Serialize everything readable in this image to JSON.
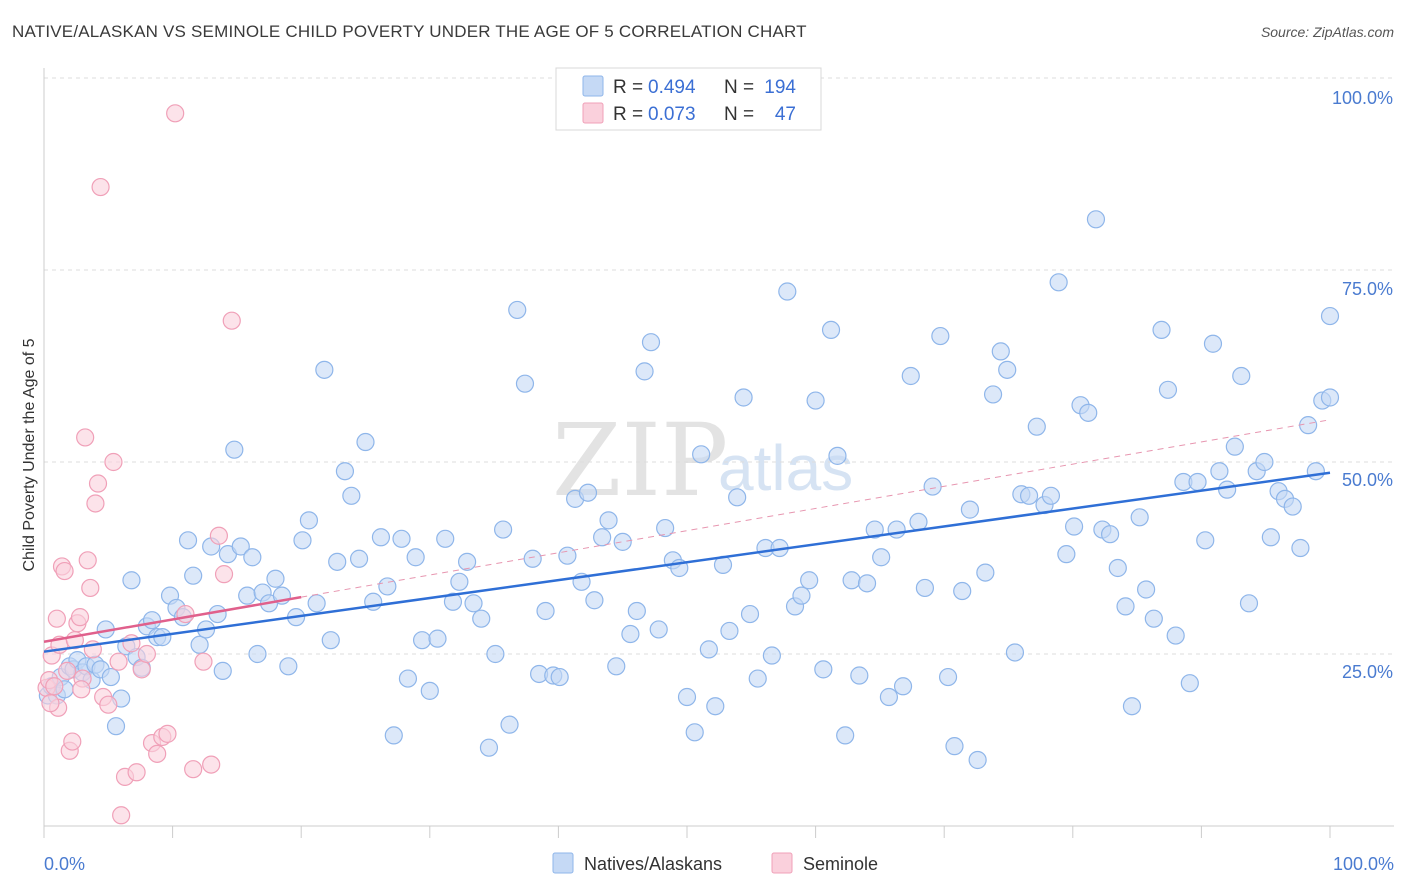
{
  "title": "NATIVE/ALASKAN VS SEMINOLE CHILD POVERTY UNDER THE AGE OF 5 CORRELATION CHART",
  "source": "Source: ZipAtlas.com",
  "watermark": {
    "part1": "ZIP",
    "part2": "atlas"
  },
  "stats_legend": [
    {
      "r_label": "R =",
      "r": "0.494",
      "n_label": "N =",
      "n": "194",
      "color": "#8fb6ea",
      "fill": "#c5d9f5"
    },
    {
      "r_label": "R =",
      "r": "0.073",
      "n_label": "N =",
      "n": "47",
      "color": "#f0a0b8",
      "fill": "#fad0dc"
    }
  ],
  "chart_data": {
    "type": "scatter",
    "title": "NATIVE/ALASKAN VS SEMINOLE CHILD POVERTY UNDER THE AGE OF 5 CORRELATION CHART",
    "xlabel": "",
    "ylabel": "Child Poverty Under the Age of 5",
    "xlim": [
      0,
      100
    ],
    "ylim": [
      0,
      100
    ],
    "x_tick_labels": [
      "0.0%",
      "100.0%"
    ],
    "y_tick_labels": [
      "25.0%",
      "50.0%",
      "75.0%",
      "100.0%"
    ],
    "y_tick_values": [
      25,
      50,
      75,
      100
    ],
    "grid": true,
    "legend_position": "bottom-center",
    "series": [
      {
        "name": "Natives/Alaskans",
        "color": "#8fb6ea",
        "fill": "#c5d9f5",
        "line_color": "#2f6fd6",
        "trend": {
          "x0": 0,
          "y0": 25.3,
          "x1": 100,
          "y1": 48.6,
          "dashed_to": {
            "x": 100,
            "y": 55.5
          }
        },
        "points": [
          [
            0.3,
            19.6
          ],
          [
            0.6,
            20.8
          ],
          [
            1.0,
            19.6
          ],
          [
            1.3,
            22.0
          ],
          [
            1.6,
            20.4
          ],
          [
            2.0,
            23.4
          ],
          [
            2.3,
            23.0
          ],
          [
            2.6,
            24.2
          ],
          [
            3.0,
            22.6
          ],
          [
            3.3,
            23.4
          ],
          [
            3.7,
            21.6
          ],
          [
            4.0,
            23.6
          ],
          [
            4.4,
            23.0
          ],
          [
            4.8,
            28.2
          ],
          [
            5.2,
            22.0
          ],
          [
            5.6,
            15.6
          ],
          [
            6.0,
            19.2
          ],
          [
            6.4,
            26.0
          ],
          [
            6.8,
            34.6
          ],
          [
            7.2,
            24.6
          ],
          [
            7.6,
            23.2
          ],
          [
            8.0,
            28.6
          ],
          [
            8.4,
            29.4
          ],
          [
            8.8,
            27.2
          ],
          [
            9.2,
            27.2
          ],
          [
            9.8,
            32.6
          ],
          [
            10.3,
            31.0
          ],
          [
            10.8,
            29.8
          ],
          [
            11.2,
            39.8
          ],
          [
            11.6,
            35.2
          ],
          [
            12.1,
            26.2
          ],
          [
            12.6,
            28.2
          ],
          [
            13.0,
            39.0
          ],
          [
            13.5,
            30.2
          ],
          [
            13.9,
            22.8
          ],
          [
            14.3,
            38.0
          ],
          [
            14.8,
            51.6
          ],
          [
            15.3,
            39.0
          ],
          [
            15.8,
            32.6
          ],
          [
            16.2,
            37.6
          ],
          [
            16.6,
            25.0
          ],
          [
            17.0,
            33.0
          ],
          [
            17.5,
            31.6
          ],
          [
            18.0,
            34.8
          ],
          [
            18.5,
            32.6
          ],
          [
            19.0,
            23.4
          ],
          [
            19.6,
            29.8
          ],
          [
            20.1,
            39.8
          ],
          [
            20.6,
            42.4
          ],
          [
            21.2,
            31.6
          ],
          [
            21.8,
            62.0
          ],
          [
            22.3,
            26.8
          ],
          [
            22.8,
            37.0
          ],
          [
            23.4,
            48.8
          ],
          [
            23.9,
            45.6
          ],
          [
            24.5,
            37.4
          ],
          [
            25.0,
            52.6
          ],
          [
            25.6,
            31.8
          ],
          [
            26.2,
            40.2
          ],
          [
            26.7,
            33.8
          ],
          [
            27.2,
            14.4
          ],
          [
            27.8,
            40.0
          ],
          [
            28.3,
            21.8
          ],
          [
            28.9,
            37.6
          ],
          [
            29.4,
            26.8
          ],
          [
            30.0,
            20.2
          ],
          [
            30.6,
            27.0
          ],
          [
            31.2,
            40.0
          ],
          [
            31.8,
            31.8
          ],
          [
            32.3,
            34.4
          ],
          [
            32.9,
            37.0
          ],
          [
            33.4,
            31.6
          ],
          [
            34.0,
            29.6
          ],
          [
            34.6,
            12.8
          ],
          [
            35.1,
            25.0
          ],
          [
            35.7,
            41.2
          ],
          [
            36.2,
            15.8
          ],
          [
            36.8,
            69.8
          ],
          [
            37.4,
            60.2
          ],
          [
            38.0,
            37.4
          ],
          [
            38.5,
            22.4
          ],
          [
            39.0,
            30.6
          ],
          [
            39.6,
            22.2
          ],
          [
            40.1,
            22.0
          ],
          [
            40.7,
            37.8
          ],
          [
            41.3,
            45.2
          ],
          [
            41.8,
            34.4
          ],
          [
            42.3,
            46.0
          ],
          [
            42.8,
            32.0
          ],
          [
            43.4,
            40.2
          ],
          [
            43.9,
            42.4
          ],
          [
            44.5,
            23.4
          ],
          [
            45.0,
            39.6
          ],
          [
            45.6,
            27.6
          ],
          [
            46.1,
            30.6
          ],
          [
            46.7,
            61.8
          ],
          [
            47.2,
            65.6
          ],
          [
            47.8,
            28.2
          ],
          [
            48.3,
            41.4
          ],
          [
            48.9,
            37.2
          ],
          [
            49.4,
            36.2
          ],
          [
            50.0,
            19.4
          ],
          [
            50.6,
            14.8
          ],
          [
            51.1,
            51.0
          ],
          [
            51.7,
            25.6
          ],
          [
            52.2,
            18.2
          ],
          [
            52.8,
            36.6
          ],
          [
            53.3,
            28.0
          ],
          [
            53.9,
            45.4
          ],
          [
            54.4,
            58.4
          ],
          [
            54.9,
            30.2
          ],
          [
            55.5,
            21.8
          ],
          [
            56.1,
            38.8
          ],
          [
            56.6,
            24.8
          ],
          [
            57.2,
            38.8
          ],
          [
            57.8,
            72.2
          ],
          [
            58.4,
            31.2
          ],
          [
            58.9,
            32.6
          ],
          [
            59.5,
            34.6
          ],
          [
            60.0,
            58.0
          ],
          [
            60.6,
            23.0
          ],
          [
            61.2,
            67.2
          ],
          [
            61.7,
            50.8
          ],
          [
            62.3,
            14.4
          ],
          [
            62.8,
            34.6
          ],
          [
            63.4,
            22.2
          ],
          [
            64.0,
            34.2
          ],
          [
            64.6,
            41.2
          ],
          [
            65.1,
            37.6
          ],
          [
            65.7,
            19.4
          ],
          [
            66.3,
            41.2
          ],
          [
            66.8,
            20.8
          ],
          [
            67.4,
            61.2
          ],
          [
            68.0,
            42.2
          ],
          [
            68.5,
            33.6
          ],
          [
            69.1,
            46.8
          ],
          [
            69.7,
            66.4
          ],
          [
            70.3,
            22.0
          ],
          [
            70.8,
            13.0
          ],
          [
            71.4,
            33.2
          ],
          [
            72.0,
            43.8
          ],
          [
            72.6,
            11.2
          ],
          [
            73.2,
            35.6
          ],
          [
            73.8,
            58.8
          ],
          [
            74.4,
            64.4
          ],
          [
            74.9,
            62.0
          ],
          [
            75.5,
            25.2
          ],
          [
            76.0,
            45.8
          ],
          [
            76.6,
            45.6
          ],
          [
            77.2,
            54.6
          ],
          [
            77.8,
            44.4
          ],
          [
            78.3,
            45.6
          ],
          [
            78.9,
            73.4
          ],
          [
            79.5,
            38.0
          ],
          [
            80.1,
            41.6
          ],
          [
            80.6,
            57.4
          ],
          [
            81.2,
            56.4
          ],
          [
            81.8,
            81.6
          ],
          [
            82.3,
            41.2
          ],
          [
            82.9,
            40.6
          ],
          [
            83.5,
            36.2
          ],
          [
            84.1,
            31.2
          ],
          [
            84.6,
            18.2
          ],
          [
            85.2,
            42.8
          ],
          [
            85.7,
            33.4
          ],
          [
            86.3,
            29.6
          ],
          [
            86.9,
            67.2
          ],
          [
            87.4,
            59.4
          ],
          [
            88.0,
            27.4
          ],
          [
            88.6,
            47.4
          ],
          [
            89.1,
            21.2
          ],
          [
            89.7,
            47.4
          ],
          [
            90.3,
            39.8
          ],
          [
            90.9,
            65.4
          ],
          [
            91.4,
            48.8
          ],
          [
            92.0,
            46.4
          ],
          [
            92.6,
            52.0
          ],
          [
            93.1,
            61.2
          ],
          [
            93.7,
            31.6
          ],
          [
            94.3,
            48.8
          ],
          [
            94.9,
            50.0
          ],
          [
            95.4,
            40.2
          ],
          [
            96.0,
            46.2
          ],
          [
            96.5,
            45.2
          ],
          [
            97.1,
            44.2
          ],
          [
            97.7,
            38.8
          ],
          [
            98.3,
            54.8
          ],
          [
            98.9,
            48.8
          ],
          [
            99.4,
            58.0
          ],
          [
            100.0,
            58.4
          ],
          [
            100.0,
            69.0
          ]
        ]
      },
      {
        "name": "Seminole",
        "color": "#f0a0b8",
        "fill": "#fad0dc",
        "line_color": "#e0608c",
        "trend": {
          "x0": 0,
          "y0": 26.6,
          "x1": 20,
          "y1": 32.4
        },
        "points": [
          [
            0.2,
            20.6
          ],
          [
            0.4,
            21.6
          ],
          [
            0.6,
            24.8
          ],
          [
            0.8,
            20.8
          ],
          [
            1.0,
            29.6
          ],
          [
            1.2,
            26.2
          ],
          [
            1.4,
            36.4
          ],
          [
            1.6,
            35.8
          ],
          [
            1.8,
            22.8
          ],
          [
            2.0,
            12.4
          ],
          [
            2.2,
            13.6
          ],
          [
            2.4,
            26.8
          ],
          [
            2.6,
            29.0
          ],
          [
            2.8,
            29.8
          ],
          [
            3.0,
            21.8
          ],
          [
            3.2,
            53.2
          ],
          [
            3.4,
            37.2
          ],
          [
            3.6,
            33.6
          ],
          [
            3.8,
            25.6
          ],
          [
            4.0,
            44.6
          ],
          [
            4.2,
            47.2
          ],
          [
            4.4,
            85.8
          ],
          [
            4.6,
            19.4
          ],
          [
            5.0,
            18.4
          ],
          [
            5.4,
            50.0
          ],
          [
            5.8,
            24.0
          ],
          [
            6.0,
            4.0
          ],
          [
            6.3,
            9.0
          ],
          [
            6.8,
            26.4
          ],
          [
            7.2,
            9.6
          ],
          [
            7.6,
            23.0
          ],
          [
            8.0,
            25.0
          ],
          [
            8.4,
            13.4
          ],
          [
            8.8,
            12.0
          ],
          [
            9.2,
            14.2
          ],
          [
            9.6,
            14.6
          ],
          [
            10.2,
            95.4
          ],
          [
            11.0,
            30.2
          ],
          [
            11.6,
            10.0
          ],
          [
            12.4,
            24.0
          ],
          [
            13.0,
            10.6
          ],
          [
            13.6,
            40.4
          ],
          [
            14.0,
            35.4
          ],
          [
            14.6,
            68.4
          ],
          [
            1.1,
            18.0
          ],
          [
            2.9,
            20.4
          ],
          [
            0.5,
            18.6
          ]
        ]
      }
    ]
  },
  "bottom_legend": [
    {
      "label": "Natives/Alaskans",
      "color": "#8fb6ea",
      "fill": "#c5d9f5"
    },
    {
      "label": "Seminole",
      "color": "#f0a0b8",
      "fill": "#fad0dc"
    }
  ]
}
